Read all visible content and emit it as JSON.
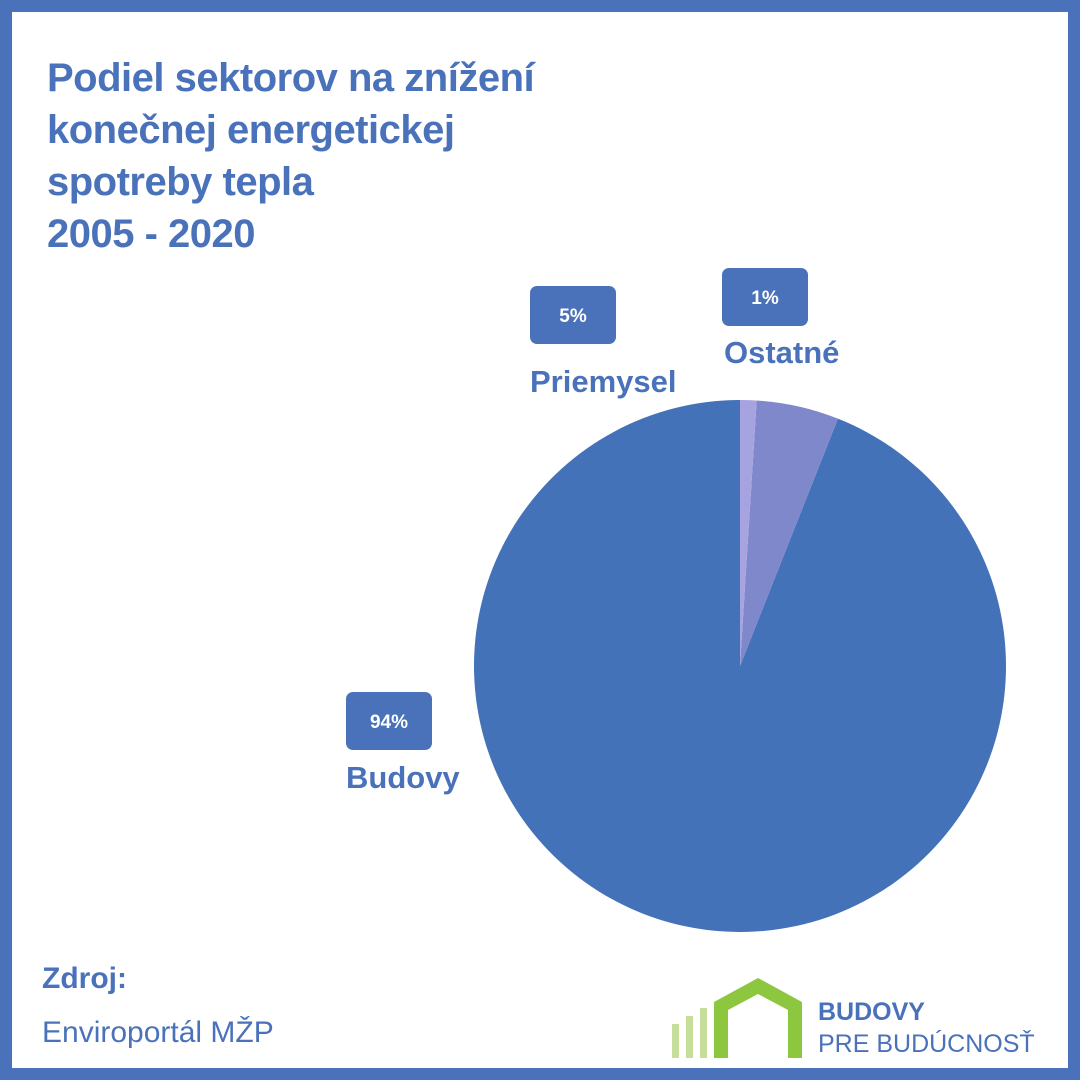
{
  "title_lines": [
    "Podiel sektorov na znížení",
    "konečnej energetickej",
    "spotreby tepla",
    "2005 - 2020"
  ],
  "chart_data": {
    "type": "pie",
    "title": "Podiel sektorov na znížení konečnej energetickej spotreby tepla 2005 - 2020",
    "series": [
      {
        "name": "Budovy",
        "value": 94,
        "label": "94%",
        "color": "#4472b8"
      },
      {
        "name": "Priemysel",
        "value": 5,
        "label": "5%",
        "color": "#8088cc"
      },
      {
        "name": "Ostatné",
        "value": 1,
        "label": "1%",
        "color": "#a7a2e0"
      }
    ],
    "start_angle": "12 o'clock",
    "direction": "counter-clockwise",
    "legend": "none"
  },
  "source": {
    "label": "Zdroj:",
    "value": "Enviroportál MŽP"
  },
  "logo": {
    "line1": "BUDOVY",
    "line2": "PRE BUDÚCNOSŤ",
    "green": "#8dc63f",
    "light_green": "#c5df9a"
  },
  "colors": {
    "accent": "#4a72bb",
    "badge_bg": "#4a72bb",
    "badge_text": "#ffffff"
  }
}
